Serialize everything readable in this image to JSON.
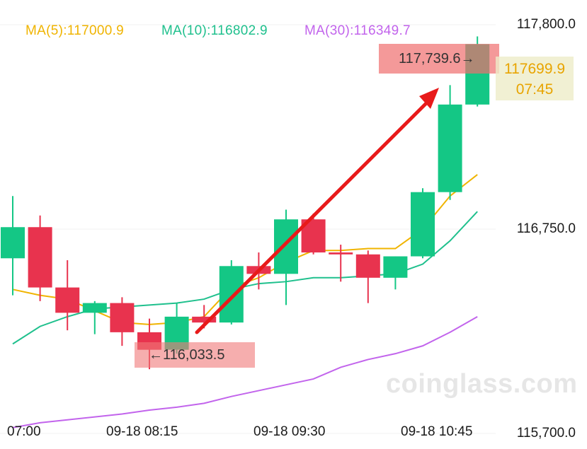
{
  "legend": {
    "ma5": {
      "label": "MA(5):117000.9",
      "color": "#f0b400"
    },
    "ma10": {
      "label": "MA(10):116802.9",
      "color": "#1fc08d"
    },
    "ma30": {
      "label": "MA(30):116349.7",
      "color": "#c264ec"
    }
  },
  "watermark": "coinglass.com",
  "annotations": {
    "low": "←116,033.5",
    "high": "117,739.6→",
    "current_price": "117699.9",
    "countdown": "07:45"
  },
  "chart_data": {
    "type": "candlestick",
    "y_ticks": [
      "117,800.0",
      "116,750.0",
      "115,700.0"
    ],
    "x_ticks": [
      "07:00",
      "09-18 08:15",
      "09-18 09:30",
      "09-18 10:45"
    ],
    "ylim": [
      115700,
      117800
    ],
    "up_color": "#14c785",
    "down_color": "#e8334e",
    "candles": [
      {
        "open": 116600,
        "high": 116920,
        "low": 116410,
        "close": 116760
      },
      {
        "open": 116760,
        "high": 116820,
        "low": 116380,
        "close": 116450
      },
      {
        "open": 116450,
        "high": 116590,
        "low": 116230,
        "close": 116320
      },
      {
        "open": 116320,
        "high": 116380,
        "low": 116210,
        "close": 116370
      },
      {
        "open": 116370,
        "high": 116400,
        "low": 116150,
        "close": 116220
      },
      {
        "open": 116220,
        "high": 116290,
        "low": 116030,
        "close": 116130
      },
      {
        "open": 116130,
        "high": 116370,
        "low": 116110,
        "close": 116300
      },
      {
        "open": 116300,
        "high": 116360,
        "low": 116240,
        "close": 116270
      },
      {
        "open": 116270,
        "high": 116590,
        "low": 116260,
        "close": 116560
      },
      {
        "open": 116560,
        "high": 116630,
        "low": 116440,
        "close": 116520
      },
      {
        "open": 116520,
        "high": 116850,
        "low": 116360,
        "close": 116800
      },
      {
        "open": 116800,
        "high": 116830,
        "low": 116620,
        "close": 116630
      },
      {
        "open": 116630,
        "high": 116670,
        "low": 116480,
        "close": 116620
      },
      {
        "open": 116620,
        "high": 116640,
        "low": 116370,
        "close": 116500
      },
      {
        "open": 116500,
        "high": 116610,
        "low": 116440,
        "close": 116610
      },
      {
        "open": 116610,
        "high": 116960,
        "low": 116600,
        "close": 116940
      },
      {
        "open": 116940,
        "high": 117490,
        "low": 116900,
        "close": 117390
      },
      {
        "open": 117390,
        "high": 117740,
        "low": 117380,
        "close": 117700
      }
    ],
    "ma5": [
      116440,
      116410,
      116390,
      116330,
      116270,
      116260,
      116270,
      116300,
      116450,
      116500,
      116580,
      116640,
      116640,
      116650,
      116650,
      116750,
      116920,
      117030
    ],
    "ma10": [
      116160,
      116250,
      116300,
      116340,
      116350,
      116360,
      116370,
      116390,
      116440,
      116470,
      116480,
      116500,
      116500,
      116510,
      116520,
      116570,
      116690,
      116840
    ],
    "ma30": [
      115730,
      115755,
      115770,
      115785,
      115800,
      115820,
      115835,
      115855,
      115890,
      115920,
      115950,
      115980,
      116040,
      116080,
      116110,
      116150,
      116220,
      116300
    ]
  }
}
